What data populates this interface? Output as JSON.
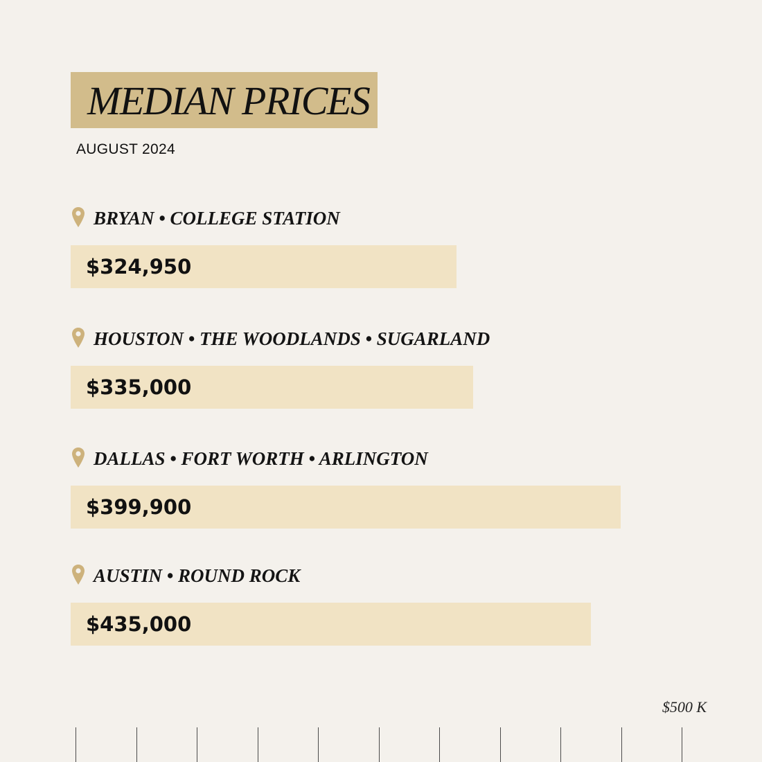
{
  "header": {
    "title": "MEDIAN PRICES",
    "subtitle": "AUGUST 2024"
  },
  "colors": {
    "title_fill": "#d2bc8b",
    "bar_fill": "#f1e3c4",
    "pin_color": "#cdb27c",
    "background": "#f4f1ec"
  },
  "chart_data": {
    "type": "bar",
    "orientation": "horizontal",
    "title": "MEDIAN PRICES",
    "subtitle": "AUGUST 2024",
    "categories": [
      "BRYAN • COLLEGE STATION",
      "HOUSTON • THE WOODLANDS • SUGARLAND",
      "DALLAS • FORT WORTH • ARLINGTON",
      "AUSTIN • ROUND ROCK"
    ],
    "values": [
      324950,
      335000,
      399900,
      435000
    ],
    "value_labels": [
      "$324,950",
      "$335,000",
      "$399,900",
      "$435,000"
    ],
    "category_icon": "map-pin-icon",
    "axis_max_label": "$500 K",
    "xlim": [
      0,
      500000
    ],
    "tick_count": 11,
    "grid": false,
    "legend": "none"
  }
}
